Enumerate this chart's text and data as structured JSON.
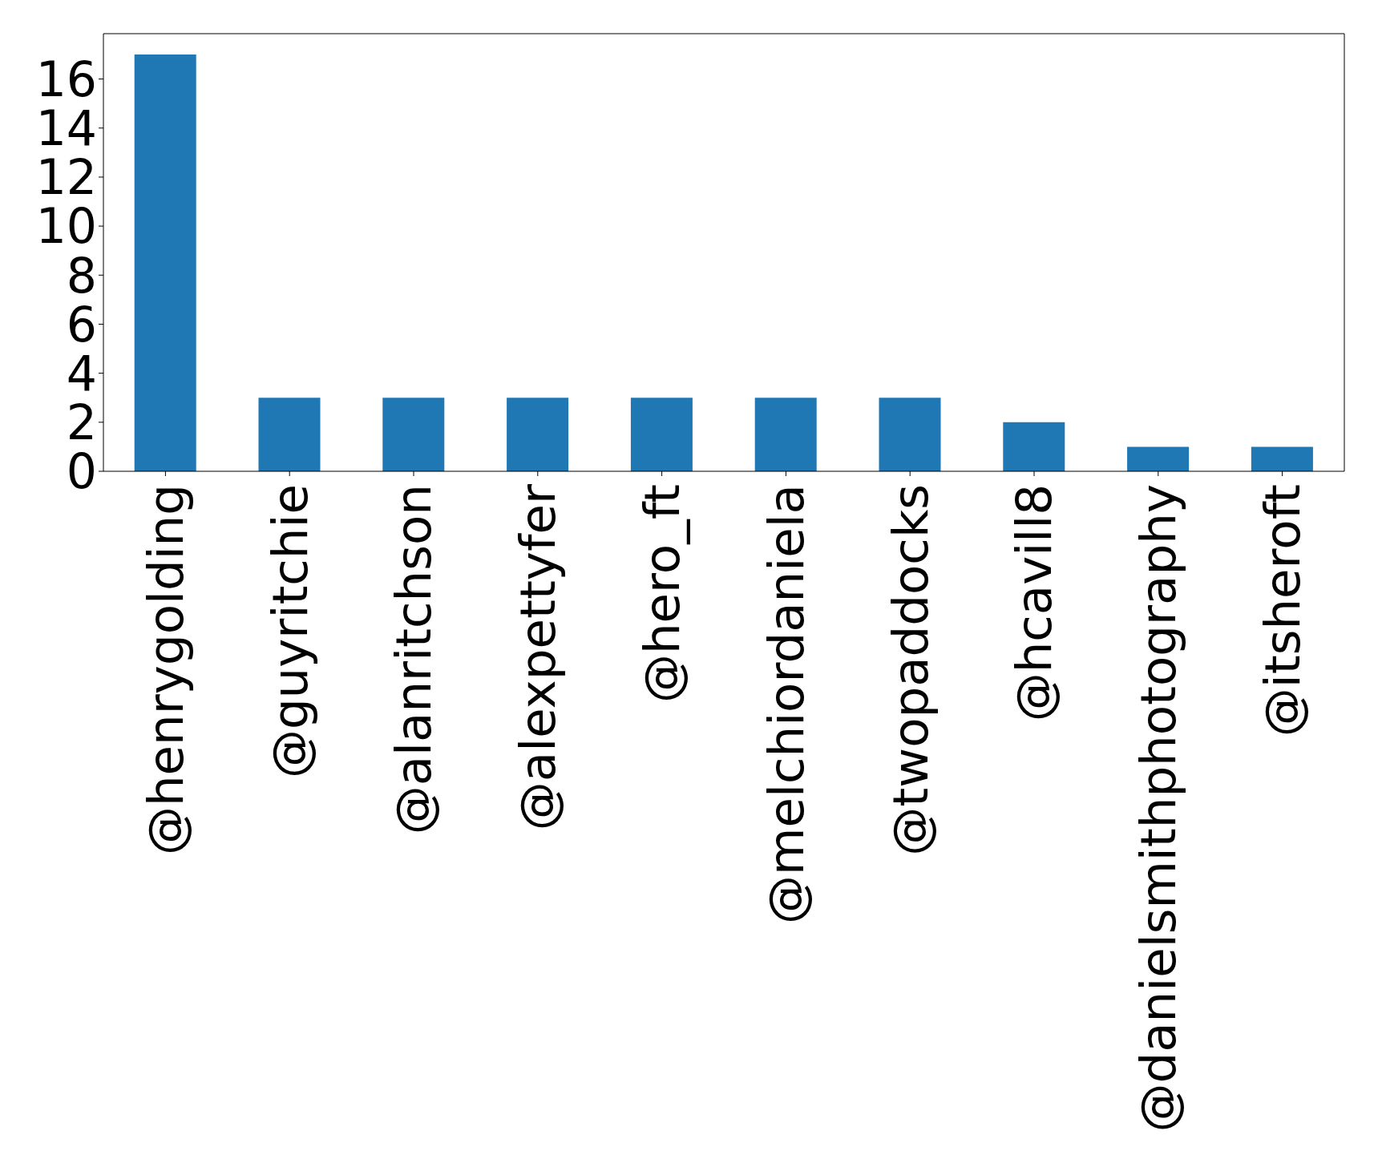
{
  "chart_data": {
    "type": "bar",
    "categories": [
      "@henrygolding",
      "@guyritchie",
      "@alanritchson",
      "@alexpettyfer",
      "@hero_ft",
      "@melchiordaniela",
      "@twopaddocks",
      "@hcavill8",
      "@danielsmithphotography",
      "@itsheroft"
    ],
    "values": [
      17,
      3,
      3,
      3,
      3,
      3,
      3,
      2,
      1,
      1
    ],
    "color": "#1f77b4",
    "ylim": [
      0,
      17.85
    ],
    "yticks": [
      0,
      2,
      4,
      6,
      8,
      10,
      12,
      14,
      16
    ],
    "grid": false
  }
}
